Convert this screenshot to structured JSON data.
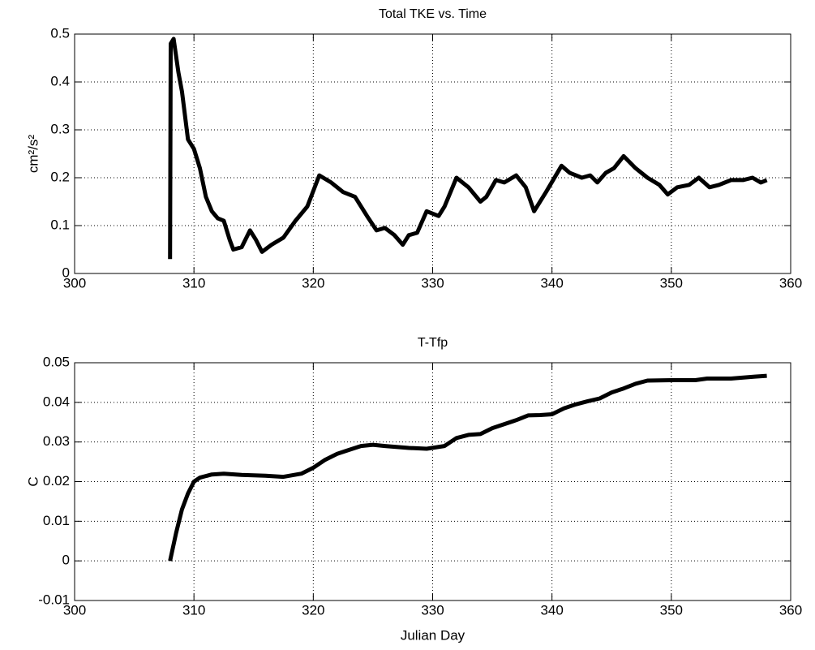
{
  "chart_data": [
    {
      "type": "line",
      "title": "Total TKE vs. Time",
      "ylabel": "cm²/s²",
      "xlim": [
        300,
        360
      ],
      "xticks": [
        300,
        310,
        320,
        330,
        340,
        350,
        360
      ],
      "ylim": [
        0,
        0.5
      ],
      "yticks": [
        0,
        0.1,
        0.2,
        0.3,
        0.4,
        0.5
      ],
      "grid": true,
      "color": "#000000",
      "x": [
        308,
        308.05,
        308.3,
        308.7,
        309,
        309.5,
        310,
        310.5,
        311,
        311.5,
        312,
        312.5,
        313,
        313.3,
        314,
        314.7,
        315.2,
        315.7,
        316.5,
        317.5,
        318.5,
        319.5,
        320.5,
        321.5,
        322.5,
        323.5,
        324.5,
        325.3,
        326,
        326.8,
        327.5,
        328,
        328.7,
        329.5,
        330.5,
        331,
        332,
        333,
        334,
        334.5,
        335.3,
        336,
        337,
        337.8,
        338.5,
        339.5,
        340.8,
        341.5,
        342.5,
        343.2,
        343.8,
        344.5,
        345.2,
        346,
        347,
        348,
        349,
        349.7,
        350.5,
        351.5,
        352.3,
        353.2,
        354,
        355,
        356,
        356.8,
        357.5,
        358
      ],
      "y": [
        0.03,
        0.48,
        0.49,
        0.42,
        0.38,
        0.28,
        0.26,
        0.22,
        0.16,
        0.13,
        0.115,
        0.11,
        0.07,
        0.05,
        0.055,
        0.09,
        0.07,
        0.045,
        0.06,
        0.075,
        0.11,
        0.14,
        0.205,
        0.19,
        0.17,
        0.16,
        0.12,
        0.09,
        0.095,
        0.08,
        0.06,
        0.08,
        0.085,
        0.13,
        0.12,
        0.14,
        0.2,
        0.18,
        0.15,
        0.16,
        0.195,
        0.19,
        0.205,
        0.18,
        0.13,
        0.17,
        0.225,
        0.21,
        0.2,
        0.205,
        0.19,
        0.21,
        0.22,
        0.245,
        0.22,
        0.2,
        0.185,
        0.165,
        0.18,
        0.185,
        0.2,
        0.18,
        0.185,
        0.195,
        0.195,
        0.2,
        0.19,
        0.195
      ]
    },
    {
      "type": "line",
      "title": "T-Tfp",
      "ylabel": "C",
      "xlabel": "Julian Day",
      "xlim": [
        300,
        360
      ],
      "xticks": [
        300,
        310,
        320,
        330,
        340,
        350,
        360
      ],
      "ylim": [
        -0.01,
        0.05
      ],
      "yticks": [
        -0.01,
        0,
        0.01,
        0.02,
        0.03,
        0.04,
        0.05
      ],
      "grid": true,
      "color": "#000000",
      "x": [
        308,
        308.5,
        309,
        309.5,
        310,
        310.5,
        311.5,
        312.5,
        314,
        316,
        317.5,
        319,
        320,
        321,
        322,
        323,
        324,
        325,
        326,
        328,
        329.5,
        331,
        332,
        333,
        334,
        335,
        337,
        338,
        339,
        340,
        341,
        342,
        343,
        344,
        345,
        346,
        347,
        348,
        350,
        352,
        353,
        355,
        357,
        358
      ],
      "y": [
        0,
        0.007,
        0.013,
        0.017,
        0.02,
        0.021,
        0.0218,
        0.022,
        0.0217,
        0.0215,
        0.0212,
        0.022,
        0.0235,
        0.0255,
        0.027,
        0.028,
        0.029,
        0.0293,
        0.029,
        0.0285,
        0.0283,
        0.029,
        0.031,
        0.0318,
        0.032,
        0.0335,
        0.0355,
        0.0367,
        0.0368,
        0.037,
        0.0385,
        0.0395,
        0.0403,
        0.041,
        0.0425,
        0.0435,
        0.0447,
        0.0455,
        0.0456,
        0.0456,
        0.046,
        0.046,
        0.0465,
        0.0467
      ]
    }
  ]
}
